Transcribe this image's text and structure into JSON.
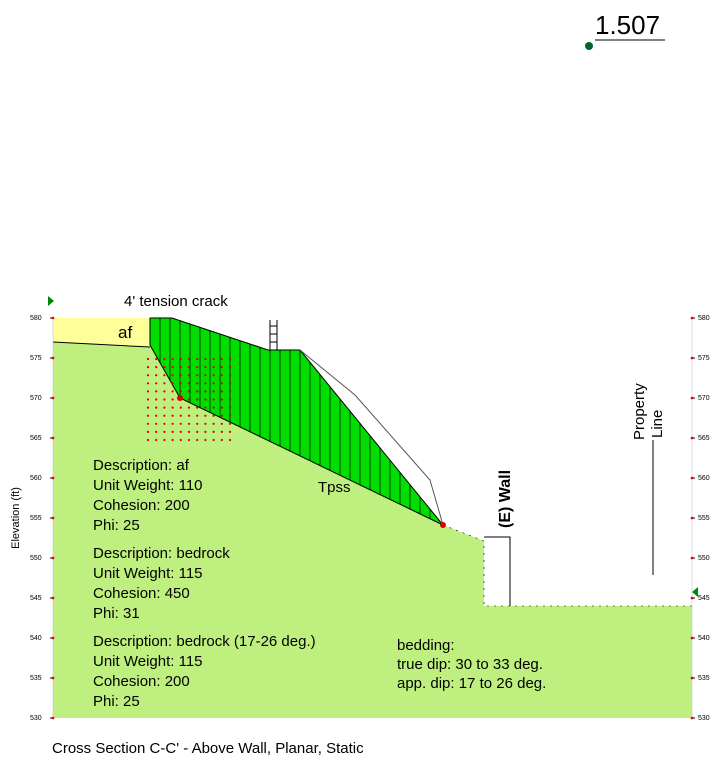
{
  "factor_of_safety": "1.507",
  "labels": {
    "tension_crack": "4' tension crack",
    "af": "af",
    "tpss": "Tpss",
    "wall": "(E) Wall",
    "property_line": [
      "Property",
      "Line"
    ]
  },
  "axis": {
    "label": "Elevation (ft)",
    "range": [
      530,
      580
    ],
    "ticks": [
      580,
      575,
      570,
      565,
      560,
      555,
      550,
      545,
      540,
      535,
      530
    ]
  },
  "materials": [
    [
      "Description: af",
      "Unit Weight: 110",
      "Cohesion: 200",
      "Phi: 25"
    ],
    [
      "Description: bedrock",
      "Unit Weight: 115",
      "Cohesion: 450",
      "Phi: 31"
    ],
    [
      "Description: bedrock (17-26 deg.)",
      "Unit Weight: 115",
      "Cohesion: 200",
      "Phi: 25"
    ]
  ],
  "bedding": [
    "bedding:",
    "true dip:  30 to 33 deg.",
    "app. dip:  17 to 26 deg."
  ],
  "caption": "Cross Section C-C' - Above Wall, Planar, Static"
}
